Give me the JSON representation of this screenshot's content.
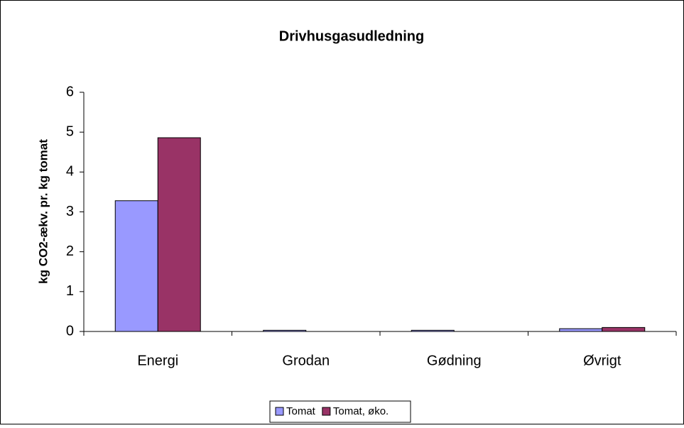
{
  "chart_data": {
    "type": "bar",
    "title": "Drivhusgasudledning",
    "y_label": "kg CO2-ækv. pr. kg tomat",
    "categories": [
      "Energi",
      "Grodan",
      "Gødning",
      "Øvrigt"
    ],
    "series": [
      {
        "name": "Tomat",
        "color": "#9999ff",
        "values": [
          3.28,
          0.03,
          0.03,
          0.07
        ]
      },
      {
        "name": "Tomat, øko.",
        "color": "#993366",
        "values": [
          4.86,
          0.0,
          0.0,
          0.1
        ]
      }
    ],
    "ylim": [
      0,
      6
    ],
    "yticks": [
      0,
      1,
      2,
      3,
      4,
      5,
      6
    ],
    "grid": false,
    "legend": "bottom"
  }
}
